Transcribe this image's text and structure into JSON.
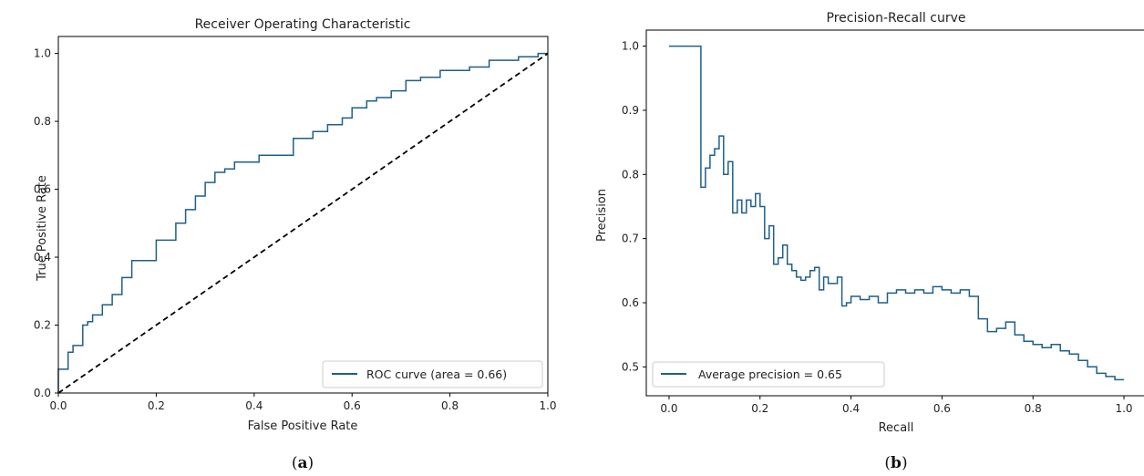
{
  "chart_data": [
    {
      "type": "line",
      "title": "Receiver Operating Characteristic",
      "xlabel": "False Positive Rate",
      "ylabel": "True Positive Rate",
      "xlim": [
        0.0,
        1.0
      ],
      "ylim": [
        0.0,
        1.05
      ],
      "xticks": [
        "0.0",
        "0.2",
        "0.4",
        "0.6",
        "0.8",
        "1.0"
      ],
      "yticks": [
        "0.0",
        "0.2",
        "0.4",
        "0.6",
        "0.8",
        "1.0"
      ],
      "legend_position": "lower-right",
      "caption": {
        "open": "(",
        "letter": "a",
        "close": ")"
      },
      "series": [
        {
          "name": "ROC curve (area = 0.66)",
          "color": "#1f5f8b",
          "style": "step",
          "x": [
            0.0,
            0.0,
            0.02,
            0.02,
            0.03,
            0.03,
            0.05,
            0.05,
            0.06,
            0.06,
            0.07,
            0.07,
            0.09,
            0.09,
            0.11,
            0.11,
            0.13,
            0.13,
            0.15,
            0.15,
            0.17,
            0.17,
            0.2,
            0.2,
            0.24,
            0.24,
            0.26,
            0.26,
            0.28,
            0.28,
            0.3,
            0.3,
            0.32,
            0.32,
            0.34,
            0.34,
            0.36,
            0.36,
            0.38,
            0.38,
            0.41,
            0.41,
            0.48,
            0.48,
            0.5,
            0.5,
            0.52,
            0.52,
            0.55,
            0.55,
            0.58,
            0.58,
            0.6,
            0.6,
            0.63,
            0.63,
            0.65,
            0.65,
            0.68,
            0.68,
            0.71,
            0.71,
            0.74,
            0.74,
            0.78,
            0.78,
            0.84,
            0.84,
            0.88,
            0.88,
            0.94,
            0.94,
            0.98,
            0.98,
            1.0
          ],
          "y": [
            0.0,
            0.07,
            0.07,
            0.12,
            0.12,
            0.14,
            0.14,
            0.2,
            0.2,
            0.21,
            0.21,
            0.23,
            0.23,
            0.26,
            0.26,
            0.29,
            0.29,
            0.34,
            0.34,
            0.39,
            0.39,
            0.39,
            0.39,
            0.45,
            0.45,
            0.5,
            0.5,
            0.54,
            0.54,
            0.58,
            0.58,
            0.62,
            0.62,
            0.65,
            0.65,
            0.66,
            0.66,
            0.68,
            0.68,
            0.68,
            0.68,
            0.7,
            0.7,
            0.75,
            0.75,
            0.75,
            0.75,
            0.77,
            0.77,
            0.79,
            0.79,
            0.81,
            0.81,
            0.84,
            0.84,
            0.86,
            0.86,
            0.87,
            0.87,
            0.89,
            0.89,
            0.92,
            0.92,
            0.93,
            0.93,
            0.95,
            0.95,
            0.96,
            0.96,
            0.98,
            0.98,
            0.99,
            0.99,
            1.0,
            1.0
          ]
        },
        {
          "name": "",
          "color": "#000000",
          "style": "dashed",
          "x": [
            0.0,
            1.0
          ],
          "y": [
            0.0,
            1.0
          ]
        }
      ]
    },
    {
      "type": "line",
      "title": "Precision-Recall curve",
      "xlabel": "Recall",
      "ylabel": "Precision",
      "xlim": [
        -0.05,
        1.05
      ],
      "ylim": [
        0.455,
        1.025
      ],
      "xticks": [
        "0.0",
        "0.2",
        "0.4",
        "0.6",
        "0.8",
        "1.0"
      ],
      "yticks": [
        "0.5",
        "0.6",
        "0.7",
        "0.8",
        "0.9",
        "1.0"
      ],
      "legend_position": "lower-left",
      "caption": {
        "open": "(",
        "letter": "b",
        "close": ")"
      },
      "series": [
        {
          "name": "Average precision = 0.65",
          "color": "#1f5f8b",
          "style": "step",
          "x": [
            0.0,
            0.07,
            0.07,
            0.08,
            0.08,
            0.09,
            0.09,
            0.1,
            0.1,
            0.11,
            0.11,
            0.12,
            0.12,
            0.13,
            0.13,
            0.14,
            0.14,
            0.15,
            0.15,
            0.16,
            0.16,
            0.17,
            0.17,
            0.18,
            0.18,
            0.19,
            0.19,
            0.2,
            0.2,
            0.21,
            0.21,
            0.22,
            0.22,
            0.23,
            0.23,
            0.24,
            0.24,
            0.25,
            0.25,
            0.26,
            0.26,
            0.27,
            0.27,
            0.28,
            0.28,
            0.29,
            0.29,
            0.3,
            0.3,
            0.31,
            0.31,
            0.32,
            0.32,
            0.33,
            0.33,
            0.34,
            0.34,
            0.35,
            0.35,
            0.37,
            0.37,
            0.38,
            0.38,
            0.39,
            0.39,
            0.4,
            0.4,
            0.42,
            0.42,
            0.44,
            0.44,
            0.46,
            0.46,
            0.48,
            0.48,
            0.5,
            0.5,
            0.52,
            0.52,
            0.54,
            0.54,
            0.56,
            0.56,
            0.58,
            0.58,
            0.6,
            0.6,
            0.62,
            0.62,
            0.64,
            0.64,
            0.66,
            0.66,
            0.68,
            0.68,
            0.7,
            0.7,
            0.72,
            0.72,
            0.74,
            0.74,
            0.76,
            0.76,
            0.78,
            0.78,
            0.8,
            0.8,
            0.82,
            0.82,
            0.84,
            0.84,
            0.86,
            0.86,
            0.88,
            0.88,
            0.9,
            0.9,
            0.92,
            0.92,
            0.94,
            0.94,
            0.96,
            0.96,
            0.98,
            0.98,
            1.0
          ],
          "y": [
            1.0,
            1.0,
            0.78,
            0.78,
            0.81,
            0.81,
            0.83,
            0.83,
            0.84,
            0.84,
            0.86,
            0.86,
            0.8,
            0.8,
            0.82,
            0.82,
            0.74,
            0.74,
            0.76,
            0.76,
            0.74,
            0.74,
            0.76,
            0.76,
            0.75,
            0.75,
            0.77,
            0.77,
            0.75,
            0.75,
            0.7,
            0.7,
            0.72,
            0.72,
            0.66,
            0.66,
            0.67,
            0.67,
            0.69,
            0.69,
            0.66,
            0.66,
            0.65,
            0.65,
            0.64,
            0.64,
            0.635,
            0.635,
            0.64,
            0.64,
            0.65,
            0.65,
            0.655,
            0.655,
            0.62,
            0.62,
            0.64,
            0.64,
            0.63,
            0.63,
            0.64,
            0.64,
            0.595,
            0.595,
            0.6,
            0.6,
            0.61,
            0.61,
            0.605,
            0.605,
            0.61,
            0.61,
            0.6,
            0.6,
            0.615,
            0.615,
            0.62,
            0.62,
            0.615,
            0.615,
            0.62,
            0.62,
            0.615,
            0.615,
            0.625,
            0.625,
            0.62,
            0.62,
            0.615,
            0.615,
            0.62,
            0.62,
            0.61,
            0.61,
            0.575,
            0.575,
            0.555,
            0.555,
            0.56,
            0.56,
            0.57,
            0.57,
            0.55,
            0.55,
            0.54,
            0.54,
            0.535,
            0.535,
            0.53,
            0.53,
            0.535,
            0.535,
            0.525,
            0.525,
            0.52,
            0.52,
            0.51,
            0.51,
            0.5,
            0.5,
            0.49,
            0.49,
            0.485,
            0.485,
            0.48,
            0.48
          ]
        }
      ]
    }
  ]
}
